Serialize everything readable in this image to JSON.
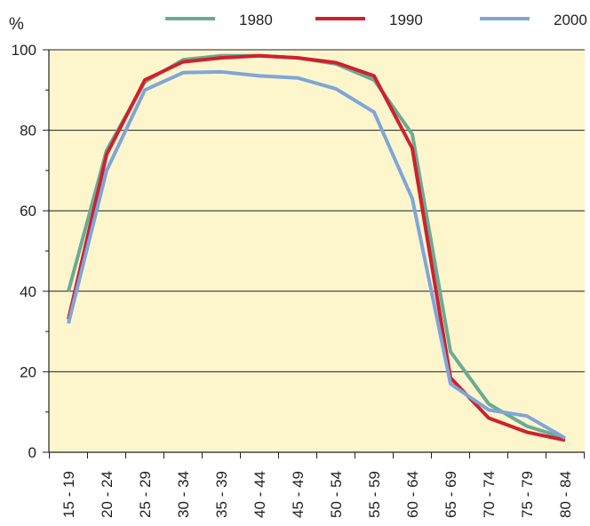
{
  "chart_data": {
    "type": "line",
    "ylabel": "%",
    "ylim": [
      0,
      100
    ],
    "yticks": [
      0,
      20,
      40,
      60,
      80,
      100
    ],
    "grid": true,
    "legend_position": "top-right",
    "plot_background": "#fdf6cd",
    "categories": [
      "15 - 19",
      "20 - 24",
      "25 - 29",
      "30 - 34",
      "35 - 39",
      "40 - 44",
      "45 - 49",
      "50 - 54",
      "55 - 59",
      "60 - 64",
      "65 - 69",
      "70 - 74",
      "75 - 79",
      "80 - 84"
    ],
    "series": [
      {
        "name": "1980",
        "color": "#6aab95",
        "values": [
          40,
          75,
          92,
          97.5,
          98.5,
          98.5,
          98,
          96.5,
          92.5,
          79,
          25,
          12,
          6.5,
          3.5
        ]
      },
      {
        "name": "1990",
        "color": "#d0202e",
        "values": [
          33,
          74,
          92.5,
          97,
          98,
          98.5,
          98,
          96.8,
          93.5,
          75.5,
          18.5,
          8.5,
          5,
          3
        ]
      },
      {
        "name": "2000",
        "color": "#7ea6d8",
        "values": [
          32,
          70,
          90,
          94.3,
          94.5,
          93.5,
          93,
          90.3,
          84.5,
          63,
          17,
          10.5,
          9,
          3.5
        ]
      }
    ]
  }
}
